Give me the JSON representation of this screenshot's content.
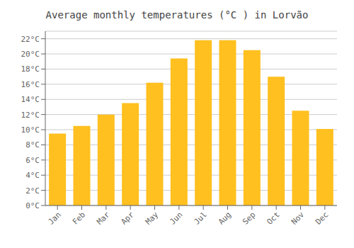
{
  "chart_data": {
    "type": "bar",
    "title": "Average monthly temperatures (°C ) in Lorvão",
    "categories": [
      "Jan",
      "Feb",
      "Mar",
      "Apr",
      "May",
      "Jun",
      "Jul",
      "Aug",
      "Sep",
      "Oct",
      "Nov",
      "Dec"
    ],
    "values": [
      9.5,
      10.5,
      12.0,
      13.5,
      16.2,
      19.4,
      21.8,
      21.8,
      20.5,
      17.0,
      12.5,
      10.1
    ],
    "color": "#FFC020",
    "ylim": [
      0,
      23
    ],
    "yticks": [
      {
        "value": 0,
        "label": "0°C"
      },
      {
        "value": 2,
        "label": "2°C"
      },
      {
        "value": 4,
        "label": "4°C"
      },
      {
        "value": 6,
        "label": "6°C"
      },
      {
        "value": 8,
        "label": "8°C"
      },
      {
        "value": 10,
        "label": "10°C"
      },
      {
        "value": 12,
        "label": "12°C"
      },
      {
        "value": 14,
        "label": "14°C"
      },
      {
        "value": 16,
        "label": "16°C"
      },
      {
        "value": 18,
        "label": "18°C"
      },
      {
        "value": 20,
        "label": "20°C"
      },
      {
        "value": 22,
        "label": "22°C"
      }
    ],
    "grid": true
  }
}
